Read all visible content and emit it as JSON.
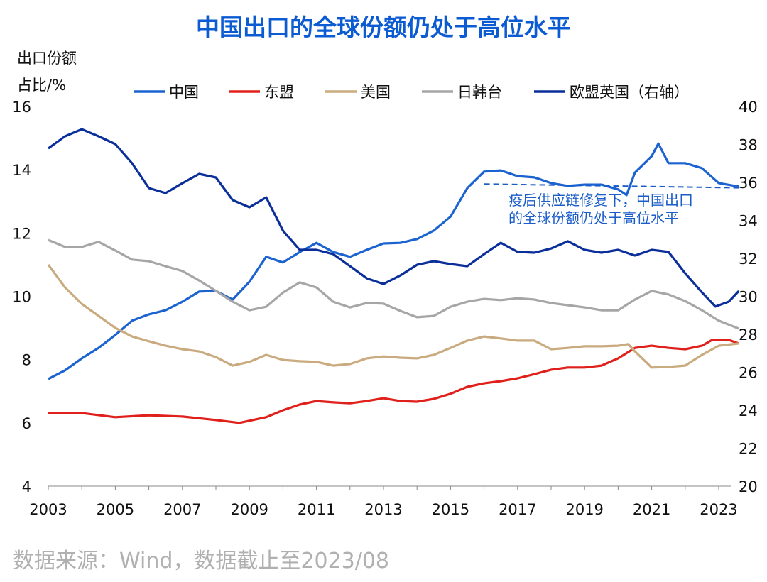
{
  "chart_data": {
    "type": "line",
    "title": "中国出口的全球份额仍处于高位水平",
    "ylabel_lines": [
      "出口份额",
      "占比/%"
    ],
    "ylim": [
      4,
      16
    ],
    "y2lim": [
      20,
      40
    ],
    "xlim": [
      2003,
      2023.7
    ],
    "yticks": [
      "4",
      "6",
      "8",
      "10",
      "12",
      "14",
      "16"
    ],
    "y2ticks": [
      "20",
      "22",
      "24",
      "26",
      "28",
      "30",
      "32",
      "34",
      "36",
      "38",
      "40"
    ],
    "xticks": [
      "2003",
      "2005",
      "2007",
      "2009",
      "2011",
      "2013",
      "2015",
      "2017",
      "2019",
      "2021",
      "2023"
    ],
    "grid": false,
    "legend_position": "top",
    "series": [
      {
        "name": "中国",
        "axis": "left",
        "color": "#1a63d0",
        "x": [
          2003,
          2003.5,
          2004,
          2004.5,
          2005,
          2005.5,
          2006,
          2006.5,
          2007,
          2007.5,
          2008,
          2008.5,
          2009,
          2009.5,
          2010,
          2010.5,
          2011,
          2011.5,
          2012,
          2012.5,
          2013,
          2013.5,
          2014,
          2014.5,
          2015,
          2015.5,
          2016,
          2016.5,
          2017,
          2017.5,
          2018,
          2018.5,
          2019,
          2019.5,
          2020,
          2020.25,
          2020.5,
          2021,
          2021.2,
          2021.5,
          2022,
          2022.5,
          2023,
          2023.6
        ],
        "y": [
          7.39,
          7.66,
          8.04,
          8.37,
          8.78,
          9.23,
          9.43,
          9.56,
          9.83,
          10.15,
          10.17,
          9.9,
          10.46,
          11.25,
          11.07,
          11.4,
          11.69,
          11.4,
          11.25,
          11.47,
          11.67,
          11.69,
          11.81,
          12.08,
          12.52,
          13.42,
          13.94,
          13.98,
          13.8,
          13.76,
          13.58,
          13.49,
          13.53,
          13.53,
          13.38,
          13.2,
          13.91,
          14.43,
          14.83,
          14.21,
          14.21,
          14.05,
          13.58,
          13.47
        ]
      },
      {
        "name": "东盟",
        "axis": "left",
        "color": "#e0201b",
        "x": [
          2003,
          2004,
          2005,
          2006,
          2007,
          2008,
          2008.7,
          2009.5,
          2010,
          2010.5,
          2011,
          2011.5,
          2012,
          2012.5,
          2013,
          2013.5,
          2014,
          2014.5,
          2015,
          2015.5,
          2016,
          2016.5,
          2017,
          2017.5,
          2018,
          2018.5,
          2019,
          2019.5,
          2020,
          2020.5,
          2021,
          2021.5,
          2022,
          2022.5,
          2022.8,
          2023.3,
          2023.6
        ],
        "y": [
          6.31,
          6.31,
          6.18,
          6.24,
          6.2,
          6.09,
          6.0,
          6.18,
          6.4,
          6.58,
          6.69,
          6.65,
          6.62,
          6.69,
          6.78,
          6.69,
          6.67,
          6.76,
          6.92,
          7.14,
          7.25,
          7.32,
          7.41,
          7.54,
          7.68,
          7.75,
          7.75,
          7.81,
          8.04,
          8.37,
          8.44,
          8.37,
          8.33,
          8.44,
          8.62,
          8.62,
          8.51
        ]
      },
      {
        "name": "美国",
        "axis": "left",
        "color": "#c9ab7f",
        "x": [
          2003,
          2003.5,
          2004,
          2004.5,
          2005,
          2005.5,
          2006,
          2006.5,
          2007,
          2007.5,
          2008,
          2008.5,
          2009,
          2009.5,
          2010,
          2010.5,
          2011,
          2011.5,
          2012,
          2012.5,
          2013,
          2013.5,
          2014,
          2014.5,
          2015,
          2015.5,
          2016,
          2016.5,
          2017,
          2017.5,
          2018,
          2018.5,
          2019,
          2019.5,
          2020,
          2020.3,
          2020.5,
          2021,
          2021.5,
          2022,
          2022.5,
          2023,
          2023.6
        ],
        "y": [
          11.0,
          10.28,
          9.76,
          9.38,
          9.0,
          8.73,
          8.58,
          8.44,
          8.33,
          8.26,
          8.08,
          7.81,
          7.93,
          8.15,
          7.99,
          7.95,
          7.93,
          7.81,
          7.86,
          8.04,
          8.1,
          8.06,
          8.04,
          8.15,
          8.37,
          8.6,
          8.73,
          8.67,
          8.6,
          8.6,
          8.33,
          8.37,
          8.42,
          8.42,
          8.44,
          8.49,
          8.26,
          7.75,
          7.77,
          7.81,
          8.15,
          8.44,
          8.51
        ]
      },
      {
        "name": "日韩台",
        "axis": "left",
        "color": "#a6a6a6",
        "x": [
          2003,
          2003.5,
          2004,
          2004.5,
          2005,
          2005.5,
          2006,
          2006.5,
          2007,
          2007.5,
          2008,
          2008.5,
          2009,
          2009.5,
          2010,
          2010.5,
          2011,
          2011.5,
          2012,
          2012.5,
          2013,
          2013.5,
          2014,
          2014.5,
          2015,
          2015.5,
          2016,
          2016.5,
          2017,
          2017.5,
          2018,
          2018.5,
          2019,
          2019.5,
          2020,
          2020.5,
          2021,
          2021.5,
          2022,
          2022.5,
          2023,
          2023.6
        ],
        "y": [
          11.78,
          11.56,
          11.56,
          11.72,
          11.45,
          11.16,
          11.11,
          10.95,
          10.8,
          10.5,
          10.17,
          9.83,
          9.56,
          9.67,
          10.12,
          10.44,
          10.28,
          9.83,
          9.65,
          9.79,
          9.77,
          9.54,
          9.34,
          9.38,
          9.67,
          9.83,
          9.92,
          9.88,
          9.94,
          9.9,
          9.79,
          9.72,
          9.65,
          9.56,
          9.56,
          9.9,
          10.17,
          10.06,
          9.85,
          9.56,
          9.23,
          8.98
        ]
      },
      {
        "name": "欧盟英国（右轴）",
        "axis": "right",
        "color": "#0b2f9a",
        "x": [
          2003,
          2003.5,
          2004,
          2004.5,
          2005,
          2005.5,
          2006,
          2006.5,
          2007,
          2007.5,
          2008,
          2008.5,
          2009,
          2009.5,
          2010,
          2010.5,
          2011,
          2011.5,
          2012,
          2012.5,
          2013,
          2013.5,
          2014,
          2014.5,
          2015,
          2015.5,
          2016,
          2016.5,
          2017,
          2017.5,
          2018,
          2018.5,
          2019,
          2019.5,
          2020,
          2020.5,
          2021,
          2021.5,
          2022,
          2022.5,
          2022.9,
          2023.3,
          2023.6
        ],
        "y": [
          37.79,
          38.43,
          38.8,
          38.43,
          38.02,
          37.01,
          35.7,
          35.44,
          35.96,
          36.45,
          36.26,
          35.07,
          34.69,
          35.21,
          33.46,
          32.45,
          32.45,
          32.22,
          31.59,
          30.95,
          30.65,
          31.1,
          31.66,
          31.85,
          31.7,
          31.59,
          32.22,
          32.82,
          32.34,
          32.3,
          32.52,
          32.9,
          32.45,
          32.3,
          32.45,
          32.15,
          32.45,
          32.34,
          31.21,
          30.21,
          29.46,
          29.72,
          30.28
        ]
      }
    ],
    "annotation": {
      "lines": [
        "疫后供应链修复下，中国出口",
        "的全球份额仍处于高位水平"
      ],
      "dashed_line": {
        "axis": "left",
        "x": [
          2016.0,
          2023.6
        ],
        "y": [
          13.55,
          13.43
        ]
      },
      "color": "#1a5cc8"
    }
  },
  "source": "数据来源：Wind，数据截止至2023/08"
}
